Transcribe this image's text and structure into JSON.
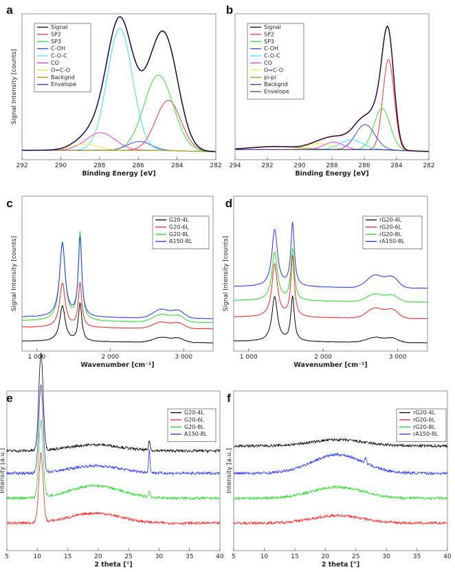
{
  "chart_data": [
    {
      "id": "a",
      "panel_label": "a",
      "type": "line",
      "xlabel": "Binding Energy [eV]",
      "ylabel": "Signal Intensity [counts]",
      "xlim": [
        292,
        282
      ],
      "xticks": [
        "292",
        "290",
        "288",
        "286",
        "284",
        "282"
      ],
      "legend": [
        "Signal",
        "SP2",
        "SP3",
        "C-OH",
        "C-O-C",
        "CO",
        "O=C-O",
        "Backgnd",
        "Envelope"
      ],
      "colors": [
        "#000000",
        "#ff3030",
        "#33dd33",
        "#3344ff",
        "#33e6ee",
        "#ee33ee",
        "#eeee22",
        "#999900",
        "#3030b0"
      ],
      "peaks": [
        {
          "name": "SP2",
          "center": 284.45,
          "height": 0.4,
          "width": 0.65
        },
        {
          "name": "SP3",
          "center": 284.95,
          "height": 0.6,
          "width": 0.75
        },
        {
          "name": "C-OH",
          "center": 285.95,
          "height": 0.07,
          "width": 0.6
        },
        {
          "name": "C-O-C",
          "center": 286.95,
          "height": 0.97,
          "width": 0.65
        },
        {
          "name": "CO",
          "center": 287.95,
          "height": 0.14,
          "width": 0.75
        },
        {
          "name": "O=C-O",
          "center": 288.8,
          "height": 0.05,
          "width": 0.7
        }
      ]
    },
    {
      "id": "b",
      "panel_label": "b",
      "type": "line",
      "xlabel": "Binding Energy [eV]",
      "ylabel": "",
      "xlim": [
        294,
        282
      ],
      "xticks": [
        "294",
        "292",
        "290",
        "288",
        "286",
        "284",
        "282"
      ],
      "legend": [
        "Signal",
        "SP2",
        "SP3",
        "C-OH",
        "C-O-C",
        "CO",
        "O=C-O",
        "pi-pi",
        "Backgnd",
        "Envelope"
      ],
      "colors": [
        "#000000",
        "#ff3030",
        "#33dd33",
        "#3344ff",
        "#33e6ee",
        "#ee33ee",
        "#eeee22",
        "#999900",
        "#3030b0",
        "#882288"
      ],
      "peaks": [
        {
          "name": "SP2",
          "center": 284.5,
          "height": 0.72,
          "width": 0.35
        },
        {
          "name": "SP3",
          "center": 284.9,
          "height": 0.33,
          "width": 0.5
        },
        {
          "name": "C-OH",
          "center": 285.95,
          "height": 0.2,
          "width": 0.6
        },
        {
          "name": "C-O-C",
          "center": 286.8,
          "height": 0.08,
          "width": 0.7
        },
        {
          "name": "CO",
          "center": 287.9,
          "height": 0.06,
          "width": 0.6
        },
        {
          "name": "O=C-O",
          "center": 288.8,
          "height": 0.05,
          "width": 0.7
        },
        {
          "name": "pi-pi",
          "center": 291.5,
          "height": 0.025,
          "width": 1.5
        }
      ]
    },
    {
      "id": "c",
      "panel_label": "c",
      "type": "line",
      "xlabel": "Wavenumber [cm⁻¹]",
      "ylabel": "Signal Intensity [counts]",
      "xlim": [
        800,
        3400
      ],
      "xticks": [
        "1 000",
        "2 000",
        "3 000"
      ],
      "xtick_values": [
        1000,
        2000,
        3000
      ],
      "series": [
        {
          "name": "G20-4L",
          "color": "#000000",
          "offset": 0.0,
          "d": 0.28,
          "g": 0.3,
          "dd": 0.04
        },
        {
          "name": "G20-6L",
          "color": "#ff2020",
          "offset": 0.11,
          "d": 0.35,
          "g": 0.35,
          "dd": 0.05
        },
        {
          "name": "G20-8L",
          "color": "#22dd22",
          "offset": 0.16,
          "d": 0.62,
          "g": 0.69,
          "dd": 0.06
        },
        {
          "name": "A150-8L",
          "color": "#2233ff",
          "offset": 0.19,
          "d": 0.58,
          "g": 0.62,
          "dd": 0.07
        }
      ]
    },
    {
      "id": "d",
      "panel_label": "d",
      "type": "line",
      "xlabel": "Wavenumber [cm⁻¹]",
      "ylabel": "Signal Intensity [counts]",
      "xlim": [
        800,
        3400
      ],
      "xticks": [
        "1 000",
        "2 000",
        "3 000"
      ],
      "xtick_values": [
        1000,
        2000,
        3000
      ],
      "series": [
        {
          "name": "rG20-4L",
          "color": "#000000",
          "offset": 0.0,
          "d": 0.35,
          "g": 0.35,
          "dd": 0.04
        },
        {
          "name": "rG20-6L",
          "color": "#ff2020",
          "offset": 0.19,
          "d": 0.42,
          "g": 0.48,
          "dd": 0.08
        },
        {
          "name": "rG20-8L",
          "color": "#22dd22",
          "offset": 0.32,
          "d": 0.38,
          "g": 0.41,
          "dd": 0.06
        },
        {
          "name": "rA150-8L",
          "color": "#2233ff",
          "offset": 0.43,
          "d": 0.45,
          "g": 0.5,
          "dd": 0.1
        }
      ]
    },
    {
      "id": "e",
      "panel_label": "e",
      "type": "line",
      "xlabel": "2 theta [°]",
      "ylabel": "Intensity [a.u.]",
      "xlim": [
        5,
        40
      ],
      "xticks": [
        "5",
        "10",
        "15",
        "20",
        "25",
        "30",
        "35",
        "40"
      ],
      "xtick_values": [
        5,
        10,
        15,
        20,
        25,
        30,
        35,
        40
      ],
      "series": [
        {
          "name": "G20-4L",
          "color": "#000000",
          "offset": 0.58,
          "peak": 0.78,
          "hump": 0.05,
          "spike": 0.08
        },
        {
          "name": "G20-6L",
          "color": "#ff2020",
          "offset": 0.0,
          "peak": 0.55,
          "hump": 0.08,
          "spike": 0.0
        },
        {
          "name": "G20-8L",
          "color": "#22dd22",
          "offset": 0.2,
          "peak": 0.62,
          "hump": 0.1,
          "spike": 0.05
        },
        {
          "name": "A150-8L",
          "color": "#2233ff",
          "offset": 0.4,
          "peak": 0.7,
          "hump": 0.06,
          "spike": 0.18
        }
      ]
    },
    {
      "id": "f",
      "panel_label": "f",
      "type": "line",
      "xlabel": "2 theta [°]",
      "ylabel": "Intensity [a.u.]",
      "xlim": [
        5,
        40
      ],
      "xticks": [
        "5",
        "10",
        "15",
        "20",
        "25",
        "30",
        "35",
        "40"
      ],
      "xtick_values": [
        5,
        10,
        15,
        20,
        25,
        30,
        35,
        40
      ],
      "series": [
        {
          "name": "rG20-4L",
          "color": "#000000",
          "offset": 0.62,
          "hump": 0.05,
          "spike": 0.0
        },
        {
          "name": "rG20-6L",
          "color": "#ff2020",
          "offset": 0.0,
          "hump": 0.06,
          "spike": 0.0
        },
        {
          "name": "rG20-8L",
          "color": "#22dd22",
          "offset": 0.2,
          "hump": 0.09,
          "spike": 0.0
        },
        {
          "name": "rA150-8L",
          "color": "#2233ff",
          "offset": 0.4,
          "hump": 0.15,
          "spike": 0.05
        }
      ]
    }
  ]
}
